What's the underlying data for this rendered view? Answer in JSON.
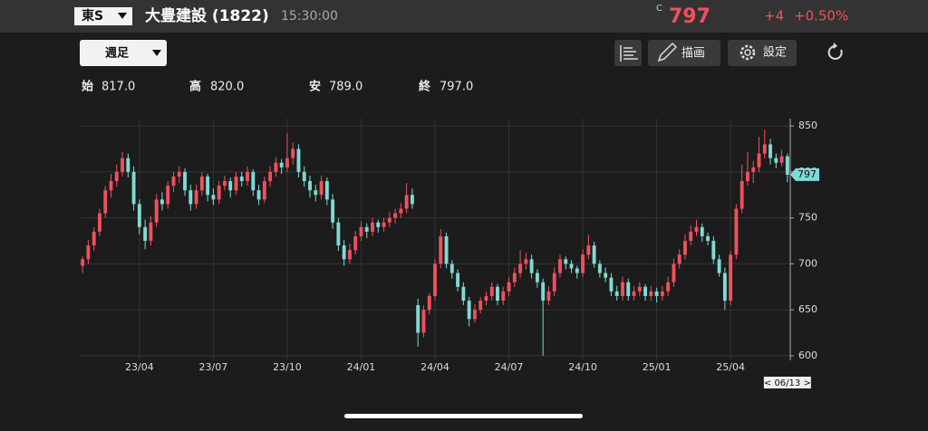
{
  "header": {
    "market": "東S",
    "name": "大豊建設 (1822)",
    "time": "15:30:00",
    "price_flag": "C",
    "price": "797",
    "change": "+4",
    "change_pct": "+0.50%"
  },
  "toolbar": {
    "period": "週足",
    "draw": "描画",
    "settings": "設定"
  },
  "ohlc_row": {
    "open_label": "始",
    "open": "817.0",
    "high_label": "高",
    "high": "820.0",
    "low_label": "安",
    "low": "789.0",
    "close_label": "終",
    "close": "797.0"
  },
  "chart_data": {
    "type": "candlestick",
    "up_color": "#f0505e",
    "down_color": "#7fdad4",
    "grid": true,
    "xlim": [
      -0.5,
      124.5
    ],
    "ylim": [
      595,
      858
    ],
    "yticks": [
      600,
      650,
      700,
      750,
      800,
      850
    ],
    "xticks": [
      {
        "value": 10,
        "label": "23/04"
      },
      {
        "value": 23,
        "label": "23/07"
      },
      {
        "value": 36,
        "label": "23/10"
      },
      {
        "value": 49,
        "label": "24/01"
      },
      {
        "value": 62,
        "label": "24/04"
      },
      {
        "value": 75,
        "label": "24/07"
      },
      {
        "value": 88,
        "label": "24/10"
      },
      {
        "value": 101,
        "label": "25/01"
      },
      {
        "value": 114,
        "label": "25/04"
      }
    ],
    "cursor_date": "< 06/13 >",
    "ohlc": [
      [
        698,
        708,
        690,
        705
      ],
      [
        705,
        726,
        700,
        720
      ],
      [
        720,
        740,
        714,
        735
      ],
      [
        735,
        760,
        730,
        755
      ],
      [
        755,
        785,
        750,
        780
      ],
      [
        780,
        798,
        772,
        790
      ],
      [
        790,
        808,
        784,
        800
      ],
      [
        800,
        822,
        795,
        815
      ],
      [
        815,
        820,
        794,
        800
      ],
      [
        800,
        806,
        758,
        765
      ],
      [
        765,
        770,
        732,
        740
      ],
      [
        740,
        748,
        716,
        725
      ],
      [
        725,
        752,
        720,
        745
      ],
      [
        745,
        776,
        740,
        770
      ],
      [
        770,
        778,
        758,
        765
      ],
      [
        765,
        790,
        760,
        785
      ],
      [
        785,
        800,
        778,
        795
      ],
      [
        795,
        806,
        788,
        800
      ],
      [
        800,
        804,
        774,
        780
      ],
      [
        780,
        786,
        758,
        765
      ],
      [
        765,
        786,
        760,
        780
      ],
      [
        780,
        800,
        774,
        795
      ],
      [
        795,
        798,
        768,
        775
      ],
      [
        775,
        782,
        764,
        770
      ],
      [
        770,
        790,
        765,
        785
      ],
      [
        785,
        796,
        780,
        790
      ],
      [
        790,
        794,
        772,
        780
      ],
      [
        780,
        800,
        775,
        795
      ],
      [
        795,
        800,
        784,
        790
      ],
      [
        790,
        806,
        785,
        800
      ],
      [
        800,
        803,
        774,
        780
      ],
      [
        780,
        786,
        764,
        770
      ],
      [
        770,
        795,
        766,
        790
      ],
      [
        790,
        806,
        784,
        800
      ],
      [
        800,
        816,
        795,
        810
      ],
      [
        810,
        814,
        798,
        805
      ],
      [
        805,
        842,
        800,
        815
      ],
      [
        815,
        832,
        808,
        825
      ],
      [
        825,
        830,
        794,
        800
      ],
      [
        800,
        806,
        784,
        790
      ],
      [
        790,
        796,
        772,
        780
      ],
      [
        780,
        786,
        768,
        775
      ],
      [
        775,
        796,
        770,
        790
      ],
      [
        790,
        794,
        764,
        770
      ],
      [
        770,
        776,
        738,
        745
      ],
      [
        745,
        750,
        714,
        720
      ],
      [
        720,
        726,
        698,
        705
      ],
      [
        705,
        722,
        700,
        715
      ],
      [
        715,
        736,
        710,
        730
      ],
      [
        730,
        746,
        725,
        740
      ],
      [
        740,
        744,
        728,
        735
      ],
      [
        735,
        750,
        730,
        745
      ],
      [
        745,
        748,
        734,
        740
      ],
      [
        740,
        750,
        735,
        745
      ],
      [
        745,
        756,
        740,
        750
      ],
      [
        750,
        760,
        744,
        755
      ],
      [
        755,
        766,
        750,
        760
      ],
      [
        760,
        788,
        755,
        775
      ],
      [
        775,
        782,
        760,
        765
      ],
      [
        655,
        662,
        610,
        625
      ],
      [
        625,
        655,
        620,
        650
      ],
      [
        650,
        668,
        645,
        665
      ],
      [
        665,
        705,
        660,
        700
      ],
      [
        700,
        738,
        695,
        730
      ],
      [
        730,
        734,
        695,
        700
      ],
      [
        700,
        704,
        684,
        690
      ],
      [
        690,
        694,
        670,
        675
      ],
      [
        675,
        680,
        655,
        660
      ],
      [
        660,
        664,
        632,
        640
      ],
      [
        640,
        656,
        636,
        650
      ],
      [
        650,
        664,
        646,
        660
      ],
      [
        660,
        670,
        655,
        665
      ],
      [
        665,
        680,
        660,
        675
      ],
      [
        675,
        678,
        655,
        660
      ],
      [
        660,
        675,
        655,
        670
      ],
      [
        670,
        686,
        665,
        680
      ],
      [
        680,
        696,
        675,
        690
      ],
      [
        690,
        715,
        685,
        700
      ],
      [
        700,
        712,
        694,
        705
      ],
      [
        705,
        710,
        684,
        690
      ],
      [
        690,
        694,
        674,
        680
      ],
      [
        680,
        684,
        600,
        660
      ],
      [
        660,
        676,
        655,
        670
      ],
      [
        670,
        696,
        665,
        690
      ],
      [
        690,
        710,
        685,
        705
      ],
      [
        705,
        708,
        694,
        700
      ],
      [
        700,
        704,
        690,
        695
      ],
      [
        695,
        698,
        684,
        690
      ],
      [
        690,
        716,
        686,
        710
      ],
      [
        710,
        732,
        705,
        720
      ],
      [
        720,
        724,
        696,
        700
      ],
      [
        700,
        704,
        685,
        690
      ],
      [
        690,
        696,
        680,
        685
      ],
      [
        685,
        690,
        665,
        670
      ],
      [
        670,
        676,
        660,
        665
      ],
      [
        665,
        686,
        660,
        680
      ],
      [
        680,
        684,
        660,
        665
      ],
      [
        665,
        676,
        660,
        670
      ],
      [
        670,
        680,
        665,
        675
      ],
      [
        675,
        678,
        660,
        665
      ],
      [
        665,
        676,
        660,
        670
      ],
      [
        670,
        674,
        658,
        665
      ],
      [
        665,
        676,
        660,
        670
      ],
      [
        670,
        686,
        665,
        680
      ],
      [
        680,
        706,
        675,
        700
      ],
      [
        700,
        716,
        695,
        710
      ],
      [
        710,
        732,
        705,
        725
      ],
      [
        725,
        742,
        720,
        735
      ],
      [
        735,
        748,
        730,
        740
      ],
      [
        740,
        744,
        724,
        730
      ],
      [
        730,
        734,
        720,
        725
      ],
      [
        725,
        730,
        700,
        705
      ],
      [
        705,
        710,
        686,
        690
      ],
      [
        690,
        696,
        650,
        660
      ],
      [
        660,
        714,
        655,
        710
      ],
      [
        710,
        765,
        705,
        760
      ],
      [
        760,
        808,
        755,
        790
      ],
      [
        790,
        822,
        785,
        800
      ],
      [
        800,
        812,
        788,
        805
      ],
      [
        805,
        838,
        800,
        820
      ],
      [
        820,
        846,
        815,
        830
      ],
      [
        830,
        836,
        808,
        815
      ],
      [
        815,
        820,
        804,
        810
      ],
      [
        810,
        824,
        806,
        817
      ],
      [
        817,
        820,
        789,
        797
      ]
    ]
  }
}
